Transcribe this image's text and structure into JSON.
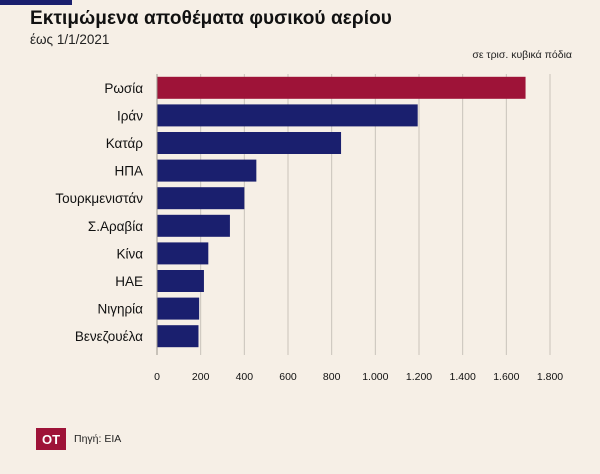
{
  "header": {
    "title": "Εκτιμώμενα αποθέματα φυσικού αερίου",
    "subtitle": "έως 1/1/2021",
    "units": "σε τρισ. κυβικά πόδια"
  },
  "footer": {
    "logo_text": "OT",
    "source": "Πηγή: EIA"
  },
  "colors": {
    "highlight": "#9e1338",
    "bar": "#1a1f6e",
    "grid": "#c9c3bb",
    "background": "#f6efe6"
  },
  "chart_data": {
    "type": "bar",
    "orientation": "horizontal",
    "title": "Εκτιμώμενα αποθέματα φυσικού αερίου",
    "subtitle": "έως 1/1/2021",
    "xlabel": "σε τρισ. κυβικά πόδια",
    "ylabel": "",
    "categories": [
      "Ρωσία",
      "Ιράν",
      "Κατάρ",
      "ΗΠΑ",
      "Τουρκμενιστάν",
      "Σ.Αραβία",
      "Κίνα",
      "ΗΑΕ",
      "Νιγηρία",
      "Βενεζουέλα"
    ],
    "values": [
      1688,
      1194,
      843,
      455,
      400,
      334,
      235,
      215,
      193,
      190
    ],
    "highlight_index": 0,
    "xlim": [
      0,
      1800
    ],
    "xticks": [
      0,
      200,
      400,
      600,
      800,
      1000,
      1200,
      1400,
      1600,
      1800
    ],
    "xtick_labels": [
      "0",
      "200",
      "400",
      "600",
      "800",
      "1.000",
      "1.200",
      "1.400",
      "1.600",
      "1.800"
    ],
    "grid": "vertical",
    "legend": "none"
  }
}
